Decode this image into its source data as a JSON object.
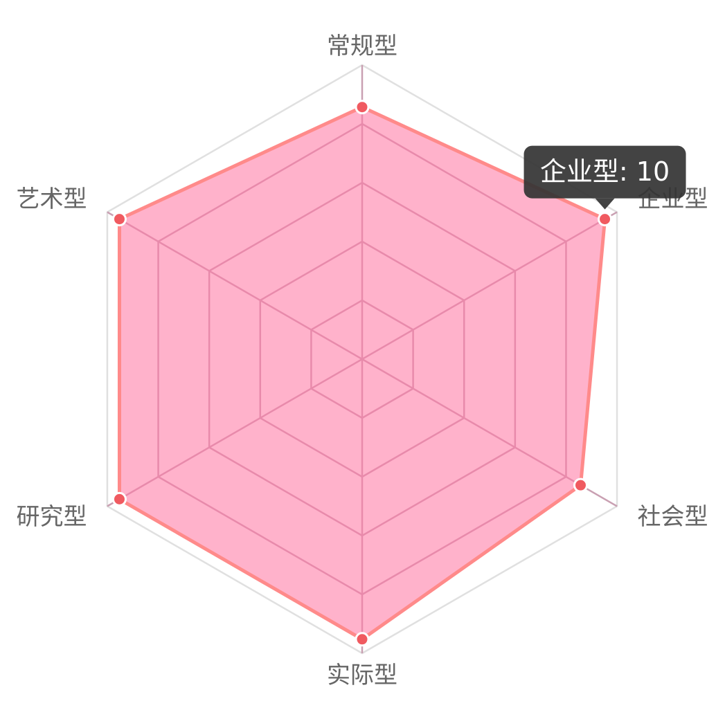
{
  "chart_data": {
    "type": "radar",
    "title": "",
    "categories": [
      "常规型",
      "企业型",
      "社会型",
      "实际型",
      "研究型",
      "艺术型"
    ],
    "series": [
      {
        "values": [
          9,
          10,
          9,
          10,
          10,
          10
        ]
      }
    ],
    "rlim": [
      0,
      10.5
    ],
    "grid": true,
    "legend": "none",
    "colors": {
      "fill": "#ff7aa6",
      "line": "#ff8a8a",
      "point": "#f05a60",
      "grid_outer": "#e0e0e0",
      "grid_inner": "#c9a0b2",
      "label": "#666666",
      "tooltip_bg": "#333333"
    }
  },
  "tooltip": {
    "text": "企业型: 10",
    "category_index": 1
  }
}
